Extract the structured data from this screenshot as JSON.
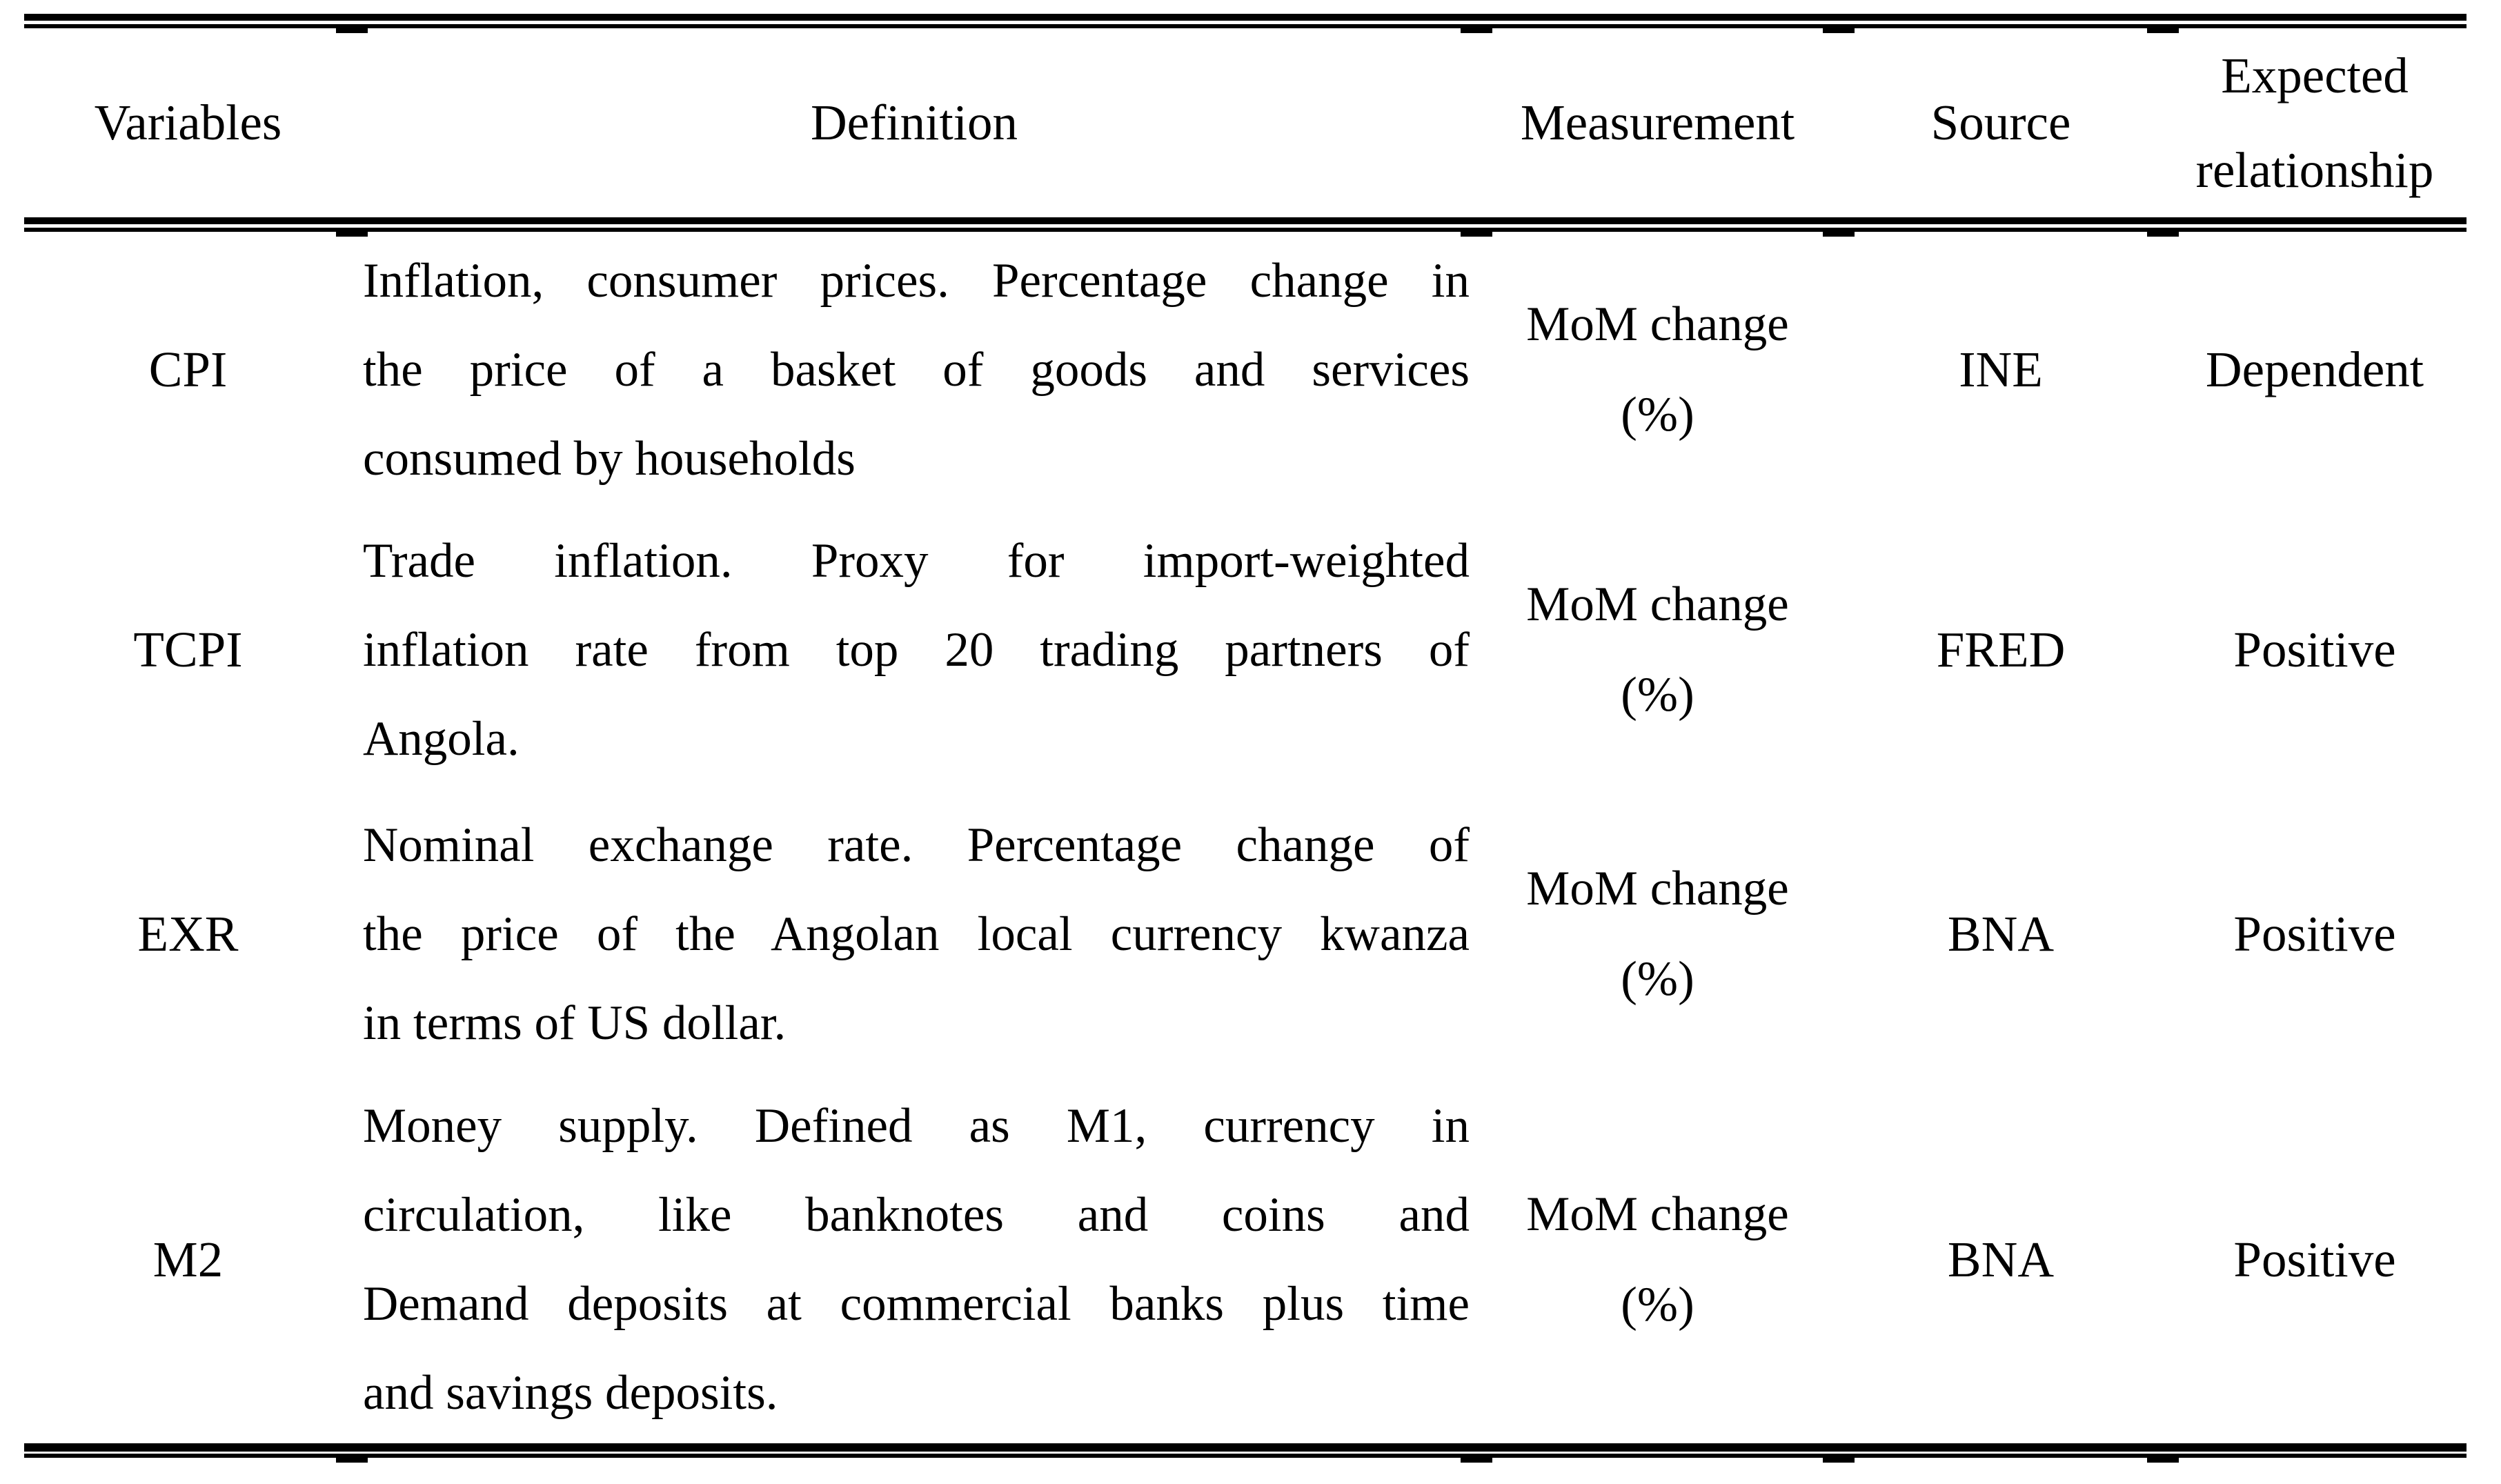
{
  "table": {
    "headers": {
      "variables": "Variables",
      "definition": "Definition",
      "measurement": "Measurement",
      "source": "Source",
      "expected_line1": "Expected",
      "expected_line2": "relationship"
    },
    "rows": [
      {
        "variable": "CPI",
        "definition_lines": [
          "Inflation, consumer prices. Percentage change in",
          "the price of a basket of goods and services",
          "consumed by households"
        ],
        "measurement_line1": "MoM change",
        "measurement_line2": "(%)",
        "source": "INE",
        "expected_relationship": "Dependent"
      },
      {
        "variable": "TCPI",
        "definition_lines": [
          "Trade inflation. Proxy for import-weighted",
          "inflation rate from top 20 trading partners of",
          "Angola."
        ],
        "measurement_line1": "MoM change",
        "measurement_line2": "(%)",
        "source": "FRED",
        "expected_relationship": "Positive"
      },
      {
        "variable": "EXR",
        "definition_lines": [
          "Nominal exchange rate. Percentage change of",
          "the price of the Angolan local currency kwanza",
          "in terms of US dollar."
        ],
        "measurement_line1": "MoM change",
        "measurement_line2": "(%)",
        "source": "BNA",
        "expected_relationship": "Positive"
      },
      {
        "variable": "M2",
        "definition_lines": [
          "Money supply. Defined as M1, currency in",
          "circulation, like banknotes and coins and",
          "Demand deposits at commercial banks plus time",
          "and savings deposits."
        ],
        "measurement_line1": "MoM change",
        "measurement_line2": "(%)",
        "source": "BNA",
        "expected_relationship": "Positive"
      }
    ]
  }
}
